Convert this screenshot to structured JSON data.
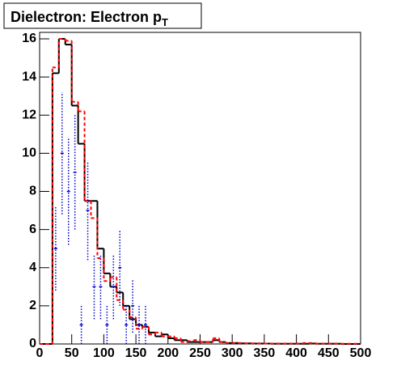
{
  "chart_data": {
    "type": "histogram",
    "title": "Dielectron: Electron p",
    "title_subscript": "T",
    "bins": [
      0,
      10,
      20,
      30,
      40,
      50,
      60,
      70,
      80,
      90,
      100,
      110,
      120,
      130,
      140,
      150,
      160,
      170,
      180,
      190,
      200,
      210,
      220,
      230,
      240,
      250,
      260,
      270,
      280,
      290,
      300,
      310,
      320,
      330,
      340,
      350,
      360,
      370,
      380,
      390,
      400,
      410,
      420,
      430,
      440,
      450,
      460,
      470,
      480,
      490,
      500
    ],
    "series": [
      {
        "color": "#000000",
        "style": "solid",
        "values": [
          0,
          0,
          14.2,
          16,
          15.7,
          12.5,
          10.5,
          7.5,
          7.5,
          5.0,
          3.7,
          3.0,
          2.7,
          2.0,
          1.3,
          1.0,
          0.9,
          0.6,
          0.4,
          0.5,
          0.3,
          0.2,
          0.2,
          0.1,
          0.1,
          0.1,
          0.1,
          0.2,
          0.1,
          0.05,
          0.05,
          0.03,
          0.03,
          0.02,
          0.02,
          0.02,
          0.01,
          0.01,
          0.01,
          0.01,
          0.01,
          0.01,
          0.02,
          0.01,
          0.01,
          0.01,
          0.01,
          0,
          0,
          0
        ]
      },
      {
        "color": "#ff0000",
        "style": "dashed",
        "values": [
          0,
          0,
          14.5,
          16,
          15.9,
          12.7,
          12.2,
          7.5,
          6.6,
          4.5,
          3.3,
          3.5,
          2.3,
          1.8,
          1.4,
          0.8,
          0.9,
          0.5,
          0.6,
          0.4,
          0.4,
          0.3,
          0.1,
          0.15,
          0.2,
          0.1,
          0.1,
          0.3,
          0.1,
          0.05,
          0.05,
          0.05,
          0.03,
          0.03,
          0.03,
          0.02,
          0.02,
          0.02,
          0.02,
          0.02,
          0.02,
          0.05,
          0.05,
          0.02,
          0.02,
          0.02,
          0.02,
          0.01,
          0.01,
          0.01
        ]
      }
    ],
    "points": {
      "color": "#0000cc",
      "x": [
        25,
        35,
        45,
        55,
        65,
        75,
        85,
        95,
        105,
        115,
        125,
        135,
        145,
        155,
        165
      ],
      "values": [
        5,
        10,
        8,
        9,
        1,
        7,
        3,
        3,
        1,
        3,
        4,
        1,
        2,
        1,
        1
      ],
      "errors": [
        2.2,
        3.2,
        2.8,
        3,
        1,
        2.6,
        1.7,
        1.7,
        1,
        1.7,
        2,
        1,
        1.4,
        1,
        1
      ]
    },
    "xlim": [
      0,
      500
    ],
    "ylim": [
      0,
      16.34
    ],
    "xticks": [
      0,
      50,
      100,
      150,
      200,
      250,
      300,
      350,
      400,
      450,
      500
    ],
    "yticks": [
      0,
      2,
      4,
      6,
      8,
      10,
      12,
      14,
      16
    ]
  }
}
